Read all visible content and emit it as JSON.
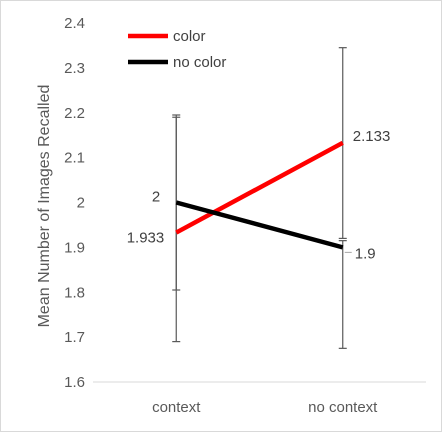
{
  "chart_data": {
    "type": "line",
    "title": "",
    "xlabel": "",
    "ylabel": "Mean Number of Images Recalled",
    "categories": [
      "context",
      "no context"
    ],
    "ylim": [
      1.6,
      2.4
    ],
    "yticks": [
      "1.6",
      "1.7",
      "1.8",
      "1.9",
      "2",
      "2.1",
      "2.2",
      "2.3",
      "2.4"
    ],
    "grid": false,
    "legend_position": "top-left",
    "series": [
      {
        "name": "color",
        "color": "#ff0000",
        "values": [
          1.933,
          2.133
        ],
        "labels": [
          "1.933",
          "2.133"
        ],
        "error_low": [
          1.69,
          1.92
        ],
        "error_high": [
          2.19,
          2.345
        ]
      },
      {
        "name": "no color",
        "color": "#000000",
        "values": [
          2.0,
          1.9
        ],
        "labels": [
          "2",
          "1.9"
        ],
        "error_low": [
          1.805,
          1.675
        ],
        "error_high": [
          2.195,
          1.915
        ]
      }
    ]
  }
}
